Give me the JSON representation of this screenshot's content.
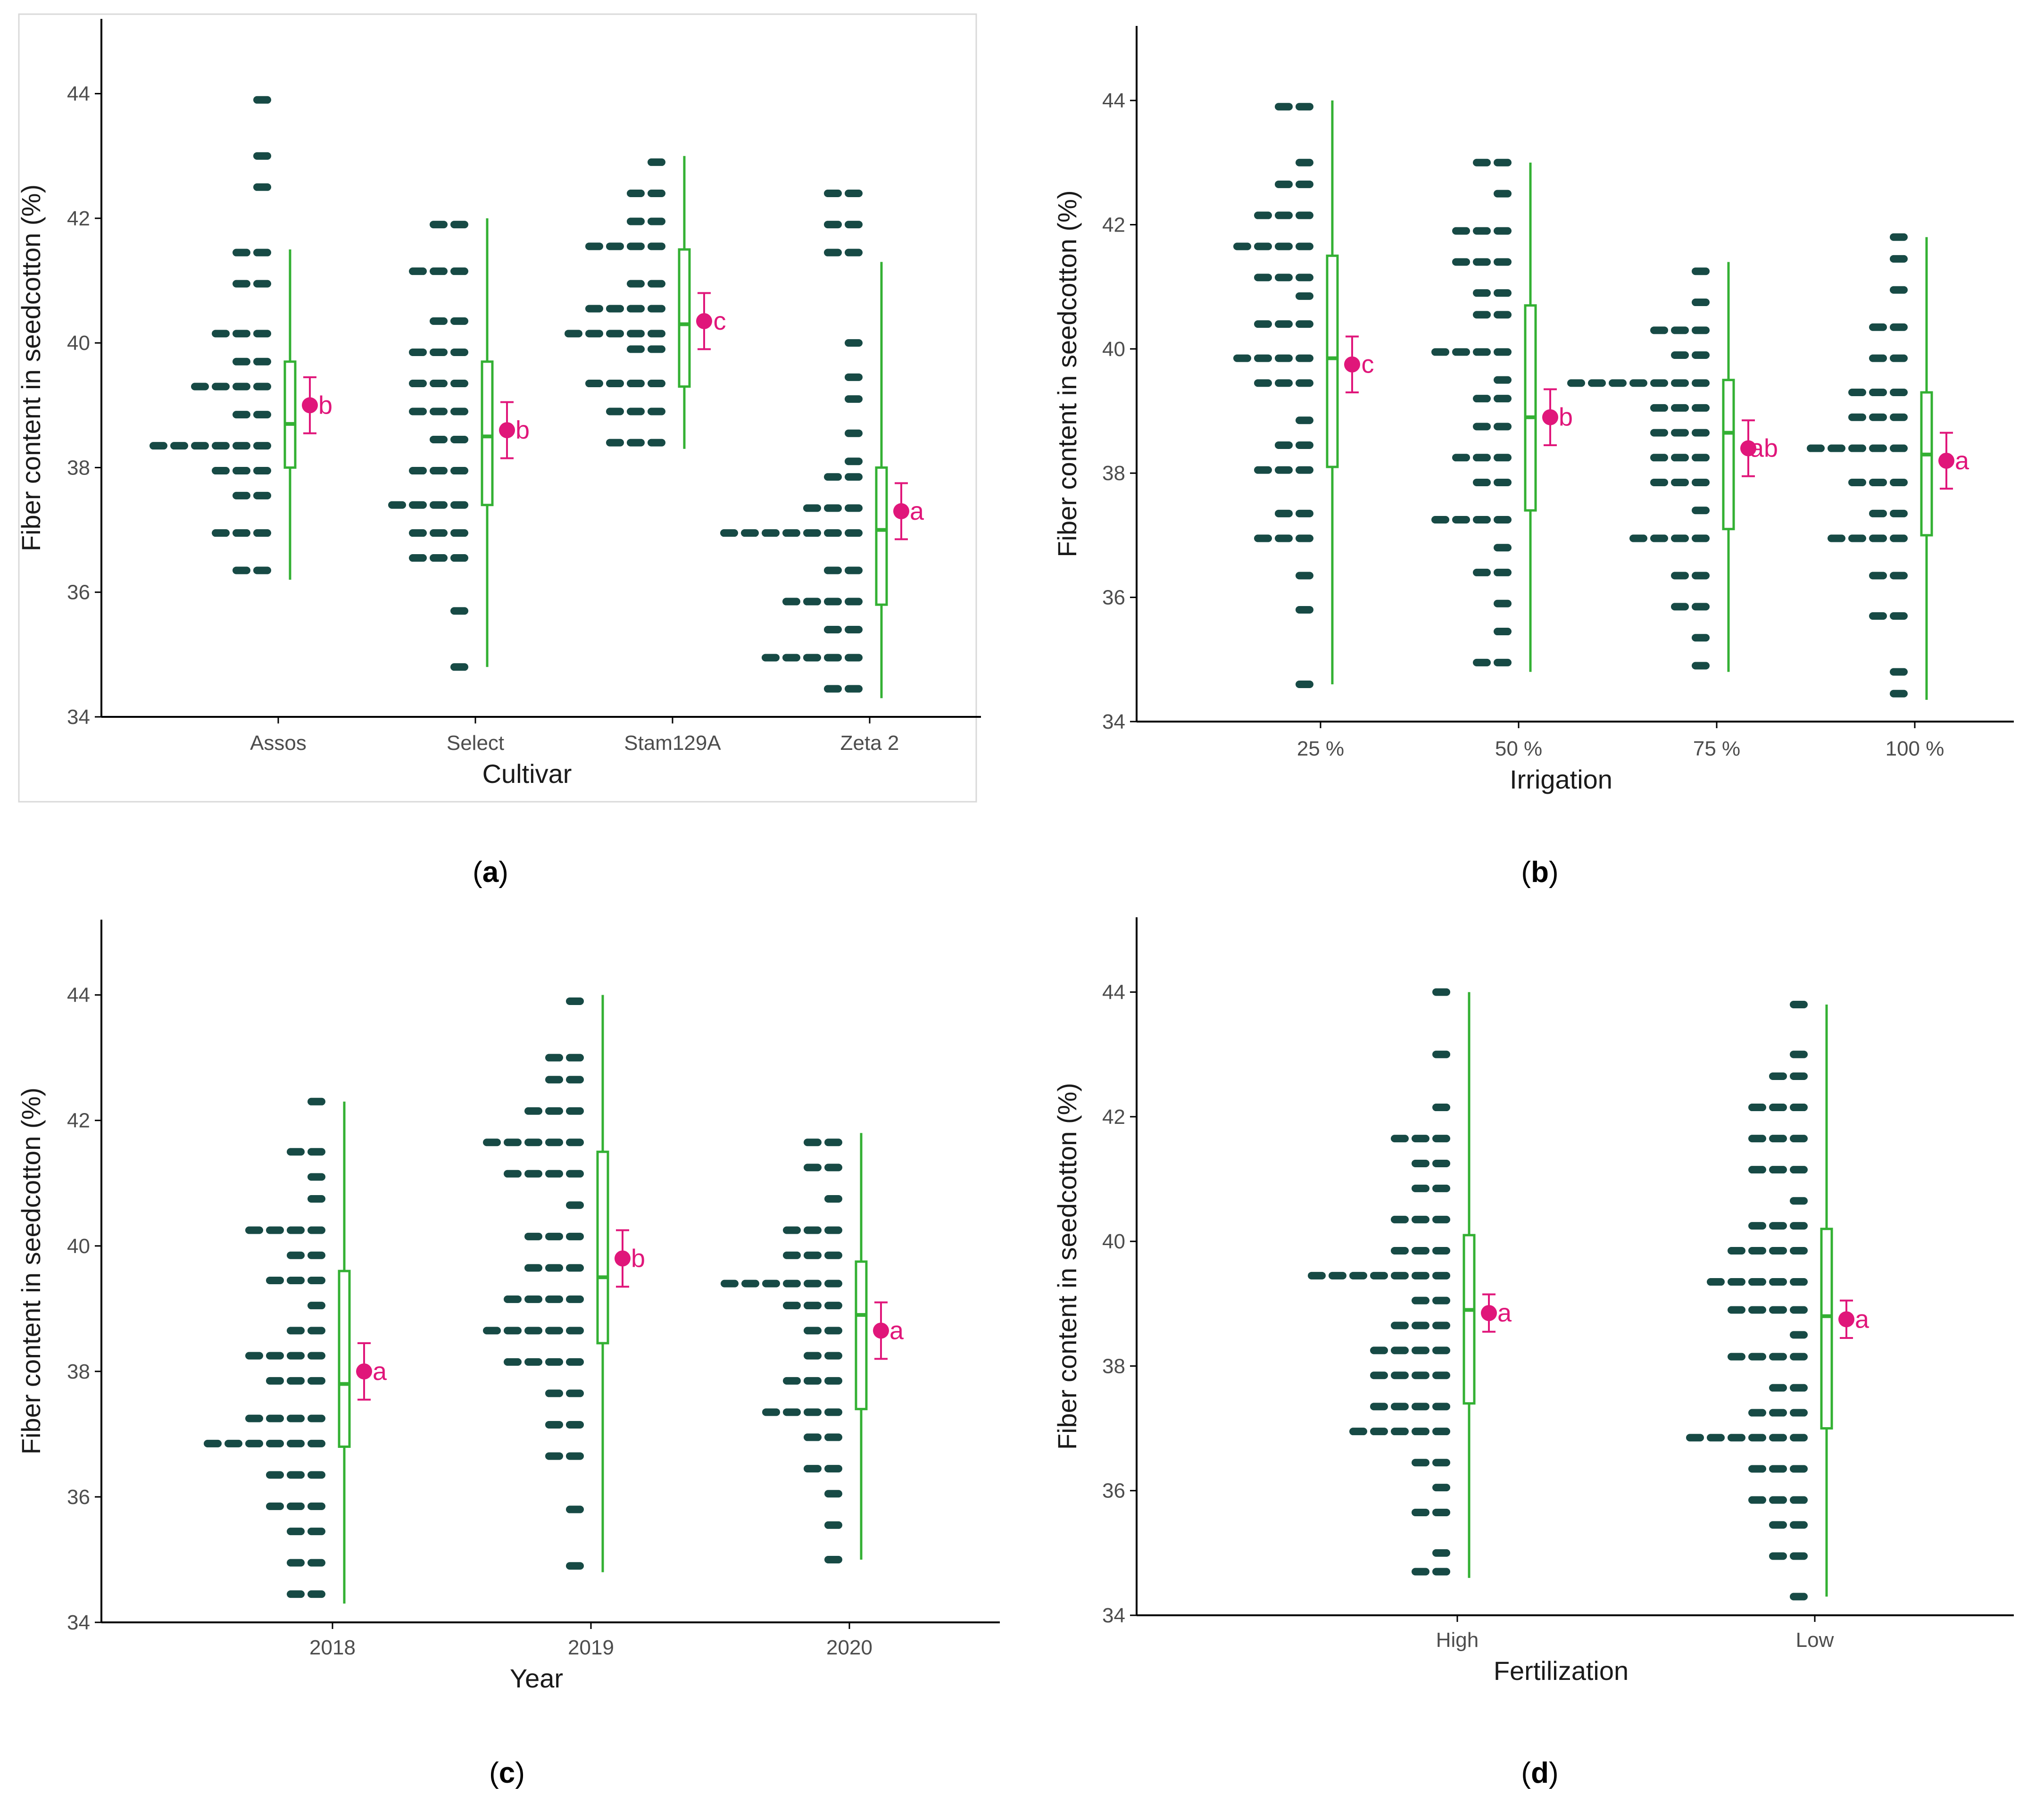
{
  "figure": {
    "panel_labels": [
      "a",
      "b",
      "c",
      "d"
    ]
  },
  "colors": {
    "dots": "#174a45",
    "box": "#33b033",
    "mean": "#e0167a",
    "axis": "#000000",
    "tick_text": "#4d4d4d",
    "panel_border": "#d9d9d9"
  },
  "chart_data": [
    {
      "type": "raincloud",
      "panel": "a",
      "title": "",
      "xlabel": "Cultivar",
      "ylabel": "Fiber content in seedcotton (%)",
      "ylim": [
        34,
        45.2
      ],
      "yticks": [
        34,
        36,
        38,
        40,
        42,
        44
      ],
      "categories": [
        "Assos",
        "Select",
        "Stam129A",
        "Zeta 2"
      ],
      "box": [
        {
          "whisker_low": 36.2,
          "q1": 38.0,
          "median": 38.7,
          "q3": 39.7,
          "whisker_high": 41.5
        },
        {
          "whisker_low": 34.8,
          "q1": 37.4,
          "median": 38.5,
          "q3": 39.7,
          "whisker_high": 42.0
        },
        {
          "whisker_low": 38.3,
          "q1": 39.3,
          "median": 40.3,
          "q3": 41.5,
          "whisker_high": 43.0
        },
        {
          "whisker_low": 34.3,
          "q1": 35.8,
          "median": 37.0,
          "q3": 38.0,
          "whisker_high": 41.3
        }
      ],
      "mean": [
        39.0,
        38.6,
        40.35,
        37.3
      ],
      "ci": [
        [
          38.55,
          39.45
        ],
        [
          38.15,
          39.05
        ],
        [
          39.9,
          40.8
        ],
        [
          36.85,
          37.75
        ]
      ],
      "letters": [
        "b",
        "b",
        "c",
        "a"
      ],
      "dots": [
        [
          [
            36.35,
            2
          ],
          [
            36.95,
            3
          ],
          [
            37.55,
            2
          ],
          [
            37.95,
            3
          ],
          [
            38.35,
            6
          ],
          [
            38.85,
            2
          ],
          [
            39.3,
            4
          ],
          [
            39.7,
            2
          ],
          [
            40.15,
            3
          ],
          [
            40.95,
            2
          ],
          [
            41.45,
            2
          ],
          [
            42.5,
            1
          ],
          [
            43.0,
            1
          ],
          [
            43.9,
            1
          ]
        ],
        [
          [
            34.8,
            1
          ],
          [
            35.7,
            1
          ],
          [
            36.55,
            3
          ],
          [
            36.95,
            3
          ],
          [
            37.4,
            4
          ],
          [
            37.95,
            3
          ],
          [
            38.45,
            2
          ],
          [
            38.9,
            3
          ],
          [
            39.35,
            3
          ],
          [
            39.85,
            3
          ],
          [
            40.35,
            2
          ],
          [
            41.15,
            3
          ],
          [
            41.9,
            2
          ]
        ],
        [
          [
            38.4,
            3
          ],
          [
            38.9,
            3
          ],
          [
            39.35,
            4
          ],
          [
            39.9,
            2
          ],
          [
            40.15,
            5
          ],
          [
            40.55,
            4
          ],
          [
            40.95,
            2
          ],
          [
            41.55,
            4
          ],
          [
            41.95,
            2
          ],
          [
            42.4,
            2
          ],
          [
            42.9,
            1
          ]
        ],
        [
          [
            34.45,
            2
          ],
          [
            34.95,
            5
          ],
          [
            35.4,
            2
          ],
          [
            35.85,
            4
          ],
          [
            36.35,
            2
          ],
          [
            36.95,
            7
          ],
          [
            37.35,
            3
          ],
          [
            37.85,
            2
          ],
          [
            38.1,
            1
          ],
          [
            38.55,
            1
          ],
          [
            39.1,
            1
          ],
          [
            39.45,
            1
          ],
          [
            40.0,
            1
          ],
          [
            41.45,
            2
          ],
          [
            41.9,
            2
          ],
          [
            42.4,
            2
          ]
        ]
      ]
    },
    {
      "type": "raincloud",
      "panel": "b",
      "title": "",
      "xlabel": "Irrigation",
      "ylabel": "Fiber content in seedcotton (%)",
      "ylim": [
        34,
        45.2
      ],
      "yticks": [
        34,
        36,
        38,
        40,
        42,
        44
      ],
      "categories": [
        "25 %",
        "50 %",
        "75 %",
        "100 %"
      ],
      "box": [
        {
          "whisker_low": 34.6,
          "q1": 38.1,
          "median": 39.85,
          "q3": 41.5,
          "whisker_high": 44.0
        },
        {
          "whisker_low": 34.8,
          "q1": 37.4,
          "median": 38.9,
          "q3": 40.7,
          "whisker_high": 43.0
        },
        {
          "whisker_low": 34.8,
          "q1": 37.1,
          "median": 38.65,
          "q3": 39.5,
          "whisker_high": 41.4
        },
        {
          "whisker_low": 34.35,
          "q1": 37.0,
          "median": 38.3,
          "q3": 39.3,
          "whisker_high": 41.8
        }
      ],
      "mean": [
        39.75,
        38.9,
        38.4,
        38.2
      ],
      "ci": [
        [
          39.3,
          40.2
        ],
        [
          38.45,
          39.35
        ],
        [
          37.95,
          38.85
        ],
        [
          37.75,
          38.65
        ]
      ],
      "letters": [
        "c",
        "b",
        "ab",
        "a"
      ],
      "dots": [
        [
          [
            34.6,
            1
          ],
          [
            35.8,
            1
          ],
          [
            36.35,
            1
          ],
          [
            36.95,
            3
          ],
          [
            37.35,
            2
          ],
          [
            38.05,
            3
          ],
          [
            38.45,
            2
          ],
          [
            38.85,
            1
          ],
          [
            39.45,
            3
          ],
          [
            39.85,
            4
          ],
          [
            40.4,
            3
          ],
          [
            40.85,
            1
          ],
          [
            41.15,
            3
          ],
          [
            41.65,
            4
          ],
          [
            42.15,
            3
          ],
          [
            42.65,
            2
          ],
          [
            43.0,
            1
          ],
          [
            43.9,
            2
          ]
        ],
        [
          [
            34.95,
            2
          ],
          [
            35.45,
            1
          ],
          [
            35.9,
            1
          ],
          [
            36.4,
            2
          ],
          [
            36.8,
            1
          ],
          [
            37.25,
            4
          ],
          [
            37.85,
            2
          ],
          [
            38.25,
            3
          ],
          [
            38.75,
            2
          ],
          [
            39.2,
            2
          ],
          [
            39.5,
            1
          ],
          [
            39.95,
            4
          ],
          [
            40.55,
            2
          ],
          [
            40.9,
            2
          ],
          [
            41.4,
            3
          ],
          [
            41.9,
            3
          ],
          [
            42.5,
            1
          ],
          [
            43.0,
            2
          ]
        ],
        [
          [
            34.9,
            1
          ],
          [
            35.35,
            1
          ],
          [
            35.85,
            2
          ],
          [
            36.35,
            2
          ],
          [
            36.95,
            4
          ],
          [
            37.4,
            1
          ],
          [
            37.85,
            3
          ],
          [
            38.25,
            3
          ],
          [
            38.65,
            3
          ],
          [
            39.05,
            3
          ],
          [
            39.45,
            7
          ],
          [
            39.9,
            2
          ],
          [
            40.3,
            3
          ],
          [
            40.75,
            1
          ],
          [
            41.25,
            1
          ]
        ],
        [
          [
            34.45,
            1
          ],
          [
            34.8,
            1
          ],
          [
            35.7,
            2
          ],
          [
            36.35,
            2
          ],
          [
            36.95,
            4
          ],
          [
            37.35,
            2
          ],
          [
            37.85,
            3
          ],
          [
            38.4,
            5
          ],
          [
            38.9,
            3
          ],
          [
            39.3,
            3
          ],
          [
            39.85,
            2
          ],
          [
            40.35,
            2
          ],
          [
            40.95,
            1
          ],
          [
            41.45,
            1
          ],
          [
            41.8,
            1
          ]
        ]
      ]
    },
    {
      "type": "raincloud",
      "panel": "c",
      "title": "",
      "xlabel": "Year",
      "ylabel": "Fiber content in seedcotton (%)",
      "ylim": [
        34,
        45.2
      ],
      "yticks": [
        34,
        36,
        38,
        40,
        42,
        44
      ],
      "categories": [
        "2018",
        "2019",
        "2020"
      ],
      "box": [
        {
          "whisker_low": 34.3,
          "q1": 36.8,
          "median": 37.8,
          "q3": 39.6,
          "whisker_high": 42.3
        },
        {
          "whisker_low": 34.8,
          "q1": 38.45,
          "median": 39.5,
          "q3": 41.5,
          "whisker_high": 44.0
        },
        {
          "whisker_low": 35.0,
          "q1": 37.4,
          "median": 38.9,
          "q3": 39.75,
          "whisker_high": 41.8
        }
      ],
      "mean": [
        38.0,
        39.8,
        38.65
      ],
      "ci": [
        [
          37.55,
          38.45
        ],
        [
          39.35,
          40.25
        ],
        [
          38.2,
          39.1
        ]
      ],
      "letters": [
        "a",
        "b",
        "a"
      ],
      "dots": [
        [
          [
            34.45,
            2
          ],
          [
            34.95,
            2
          ],
          [
            35.45,
            2
          ],
          [
            35.85,
            3
          ],
          [
            36.35,
            3
          ],
          [
            36.85,
            6
          ],
          [
            37.25,
            4
          ],
          [
            37.85,
            3
          ],
          [
            38.25,
            4
          ],
          [
            38.65,
            2
          ],
          [
            39.05,
            1
          ],
          [
            39.45,
            3
          ],
          [
            39.85,
            2
          ],
          [
            40.25,
            4
          ],
          [
            40.75,
            1
          ],
          [
            41.1,
            1
          ],
          [
            41.5,
            2
          ],
          [
            42.3,
            1
          ]
        ],
        [
          [
            34.9,
            1
          ],
          [
            35.8,
            1
          ],
          [
            36.65,
            2
          ],
          [
            37.15,
            2
          ],
          [
            37.65,
            2
          ],
          [
            38.15,
            4
          ],
          [
            38.65,
            5
          ],
          [
            39.15,
            4
          ],
          [
            39.65,
            3
          ],
          [
            40.15,
            3
          ],
          [
            40.65,
            1
          ],
          [
            41.15,
            4
          ],
          [
            41.65,
            5
          ],
          [
            42.15,
            3
          ],
          [
            42.65,
            2
          ],
          [
            43.0,
            2
          ],
          [
            43.9,
            1
          ]
        ],
        [
          [
            35.0,
            1
          ],
          [
            35.55,
            1
          ],
          [
            36.05,
            1
          ],
          [
            36.45,
            2
          ],
          [
            36.95,
            2
          ],
          [
            37.35,
            4
          ],
          [
            37.85,
            3
          ],
          [
            38.25,
            2
          ],
          [
            38.65,
            2
          ],
          [
            39.05,
            3
          ],
          [
            39.4,
            6
          ],
          [
            39.85,
            3
          ],
          [
            40.25,
            3
          ],
          [
            40.75,
            1
          ],
          [
            41.25,
            2
          ],
          [
            41.65,
            2
          ]
        ]
      ]
    },
    {
      "type": "raincloud",
      "panel": "d",
      "title": "",
      "xlabel": "Fertilization",
      "ylabel": "Fiber content in seedcotton (%)",
      "ylim": [
        34,
        45.2
      ],
      "yticks": [
        34,
        36,
        38,
        40,
        42,
        44
      ],
      "categories": [
        "High",
        "Low"
      ],
      "box": [
        {
          "whisker_low": 34.6,
          "q1": 37.4,
          "median": 38.9,
          "q3": 40.1,
          "whisker_high": 44.0
        },
        {
          "whisker_low": 34.3,
          "q1": 37.0,
          "median": 38.8,
          "q3": 40.2,
          "whisker_high": 43.8
        }
      ],
      "mean": [
        38.85,
        38.75
      ],
      "ci": [
        [
          38.55,
          39.15
        ],
        [
          38.45,
          39.05
        ]
      ],
      "letters": [
        "a",
        "a"
      ],
      "dots": [
        [
          [
            34.7,
            2
          ],
          [
            35.0,
            1
          ],
          [
            35.65,
            2
          ],
          [
            36.05,
            1
          ],
          [
            36.45,
            2
          ],
          [
            36.95,
            5
          ],
          [
            37.35,
            4
          ],
          [
            37.85,
            4
          ],
          [
            38.25,
            4
          ],
          [
            38.65,
            3
          ],
          [
            39.05,
            2
          ],
          [
            39.45,
            7
          ],
          [
            39.85,
            3
          ],
          [
            40.35,
            3
          ],
          [
            40.85,
            2
          ],
          [
            41.25,
            2
          ],
          [
            41.65,
            3
          ],
          [
            42.15,
            1
          ],
          [
            43.0,
            1
          ],
          [
            44.0,
            1
          ]
        ],
        [
          [
            34.3,
            1
          ],
          [
            34.95,
            2
          ],
          [
            35.45,
            2
          ],
          [
            35.85,
            3
          ],
          [
            36.35,
            3
          ],
          [
            36.85,
            6
          ],
          [
            37.25,
            3
          ],
          [
            37.65,
            2
          ],
          [
            38.15,
            4
          ],
          [
            38.5,
            1
          ],
          [
            38.9,
            4
          ],
          [
            39.35,
            5
          ],
          [
            39.85,
            4
          ],
          [
            40.25,
            3
          ],
          [
            40.65,
            1
          ],
          [
            41.15,
            3
          ],
          [
            41.65,
            3
          ],
          [
            42.15,
            3
          ],
          [
            42.65,
            2
          ],
          [
            43.0,
            1
          ],
          [
            43.8,
            1
          ]
        ]
      ]
    }
  ]
}
